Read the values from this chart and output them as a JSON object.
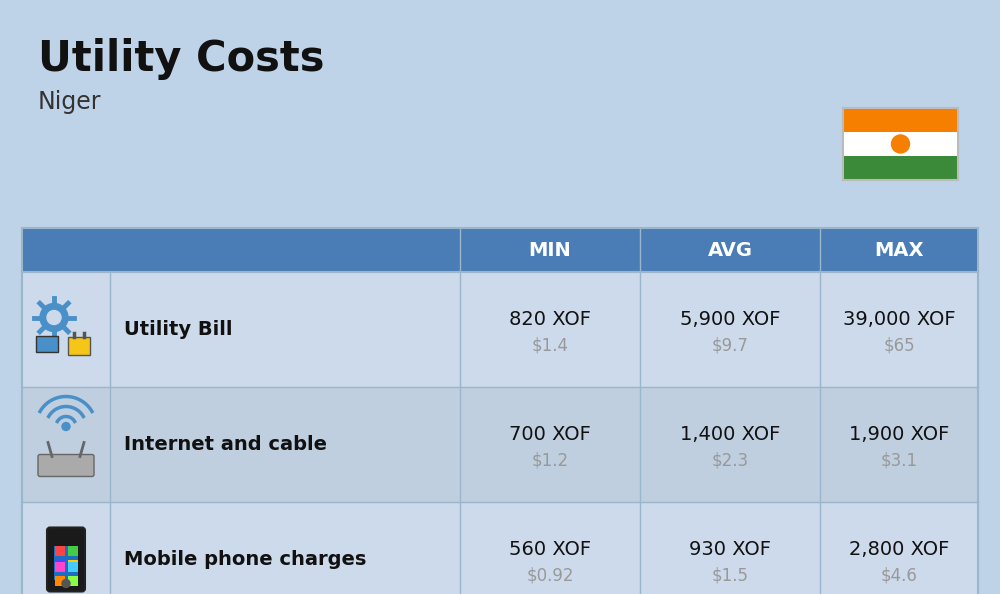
{
  "title": "Utility Costs",
  "subtitle": "Niger",
  "background_color": "#bed3e8",
  "header_bg_color": "#4a7db5",
  "header_text_color": "#ffffff",
  "row_bg_color_1": "#ccdaeb",
  "row_bg_color_2": "#bfcfdf",
  "rows": [
    {
      "icon_label": "utility",
      "name": "Utility Bill",
      "min_xof": "820 XOF",
      "min_usd": "$1.4",
      "avg_xof": "5,900 XOF",
      "avg_usd": "$9.7",
      "max_xof": "39,000 XOF",
      "max_usd": "$65"
    },
    {
      "icon_label": "internet",
      "name": "Internet and cable",
      "min_xof": "700 XOF",
      "min_usd": "$1.2",
      "avg_xof": "1,400 XOF",
      "avg_usd": "$2.3",
      "max_xof": "1,900 XOF",
      "max_usd": "$3.1"
    },
    {
      "icon_label": "mobile",
      "name": "Mobile phone charges",
      "min_xof": "560 XOF",
      "min_usd": "$0.92",
      "avg_xof": "930 XOF",
      "avg_usd": "$1.5",
      "max_xof": "2,800 XOF",
      "max_usd": "$4.6"
    }
  ],
  "flag_colors": [
    "#f77f00",
    "#ffffff",
    "#3a8a3a"
  ],
  "flag_circle_color": "#f77f00",
  "title_fontsize": 30,
  "subtitle_fontsize": 17,
  "header_fontsize": 14,
  "name_fontsize": 14,
  "value_fontsize": 14,
  "usd_fontsize": 12,
  "usd_color": "#999999",
  "table_line_color": "#9ab5cc"
}
